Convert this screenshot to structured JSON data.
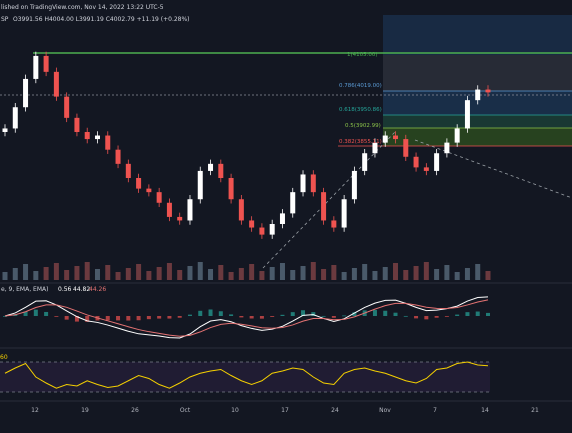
{
  "header": {
    "published": "lished on TradingView.com, Nov 14, 2022 13:22 UTC-5",
    "symbol": "SP",
    "ohlc": "O3991.56  H4004.00  L3991.19  C4002.79  +11.19 (+0.28%)"
  },
  "fib": {
    "levels": [
      {
        "label": "1(4105.00)",
        "value": 4105.0,
        "color": "#4caf50"
      },
      {
        "label": "0.786(4019.00)",
        "value": 4019.0,
        "color": "#5b9bd5"
      },
      {
        "label": "0.618(3950.86)",
        "value": 3950.86,
        "color": "#26a69a"
      },
      {
        "label": "0.5(3902.99)",
        "value": 3902.99,
        "color": "#8bc34a"
      },
      {
        "label": "0.382(3855.11)",
        "value": 3855.11,
        "color": "#ef5350"
      }
    ]
  },
  "macd": {
    "label": "e, 9, EMA, EMA)",
    "v1": "0.56",
    "v2": "44.82",
    "v3": "44.26"
  },
  "rsi": {
    "label": "60"
  },
  "x_axis": {
    "ticks": [
      "12",
      "19",
      "26",
      "Oct",
      "10",
      "17",
      "24",
      "Nov",
      "7",
      "14",
      "21"
    ]
  },
  "colors": {
    "up": "#ffffff",
    "down": "#ef5350",
    "fib_top": "#4caf50",
    "rsi_line": "#f5d000",
    "macd_line": "#ffffff",
    "signal_line": "#e57373"
  },
  "chart_data": {
    "type": "candlestick",
    "title": "",
    "xlabel": "",
    "ylabel": "",
    "series": [
      {
        "name": "price",
        "values": [
          3900,
          3960,
          4040,
          4105,
          4060,
          3990,
          3930,
          3890,
          3870,
          3880,
          3840,
          3800,
          3760,
          3730,
          3720,
          3690,
          3650,
          3640,
          3700,
          3780,
          3800,
          3760,
          3700,
          3640,
          3620,
          3600,
          3630,
          3660,
          3720,
          3770,
          3720,
          3640,
          3620,
          3700,
          3780,
          3830,
          3860,
          3880,
          3870,
          3820,
          3790,
          3780,
          3830,
          3860,
          3900,
          3980,
          4010,
          4002
        ]
      },
      {
        "name": "rsi",
        "values": [
          55,
          62,
          68,
          50,
          42,
          35,
          40,
          38,
          45,
          40,
          36,
          38,
          45,
          52,
          48,
          40,
          35,
          42,
          50,
          55,
          58,
          60,
          52,
          45,
          40,
          45,
          55,
          58,
          62,
          60,
          50,
          42,
          40,
          55,
          60,
          62,
          58,
          55,
          50,
          45,
          42,
          48,
          60,
          62,
          68,
          70,
          66,
          65
        ]
      }
    ]
  }
}
